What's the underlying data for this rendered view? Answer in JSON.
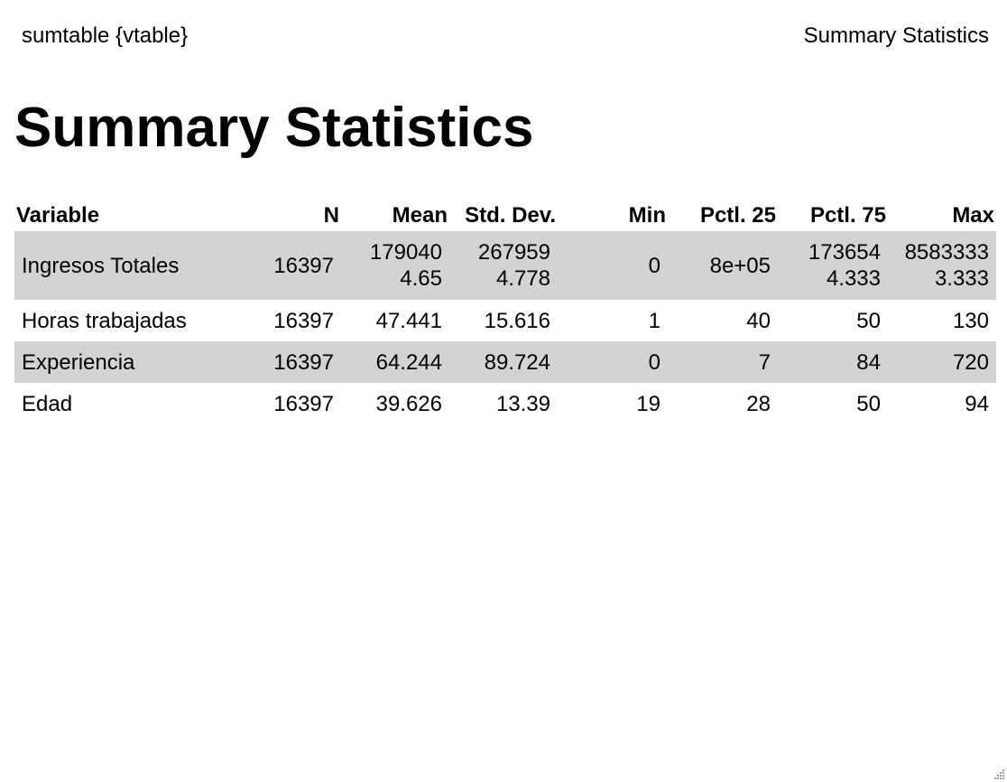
{
  "header": {
    "left": "sumtable {vtable}",
    "right": "Summary Statistics"
  },
  "page_title": "Summary Statistics",
  "table": {
    "columns": [
      "Variable",
      "N",
      "Mean",
      "Std. Dev.",
      "Min",
      "Pctl. 25",
      "Pctl. 75",
      "Max"
    ],
    "rows": [
      {
        "variable": "Ingresos Totales",
        "n": "16397",
        "mean": [
          "179040",
          "4.65"
        ],
        "sd": [
          "267959",
          "4.778"
        ],
        "min": "0",
        "p25": "8e+05",
        "p75": [
          "173654",
          "4.333"
        ],
        "max": [
          "8583333",
          "3.333"
        ]
      },
      {
        "variable": "Horas trabajadas",
        "n": "16397",
        "mean": "47.441",
        "sd": "15.616",
        "min": "1",
        "p25": "40",
        "p75": "50",
        "max": "130"
      },
      {
        "variable": "Experiencia",
        "n": "16397",
        "mean": "64.244",
        "sd": "89.724",
        "min": "0",
        "p25": "7",
        "p75": "84",
        "max": "720"
      },
      {
        "variable": "Edad",
        "n": "16397",
        "mean": "39.626",
        "sd": "13.39",
        "min": "19",
        "p25": "28",
        "p75": "50",
        "max": "94"
      }
    ]
  },
  "colors": {
    "shaded_row": "#d3d3d3",
    "text": "#000000",
    "background": "#ffffff"
  }
}
